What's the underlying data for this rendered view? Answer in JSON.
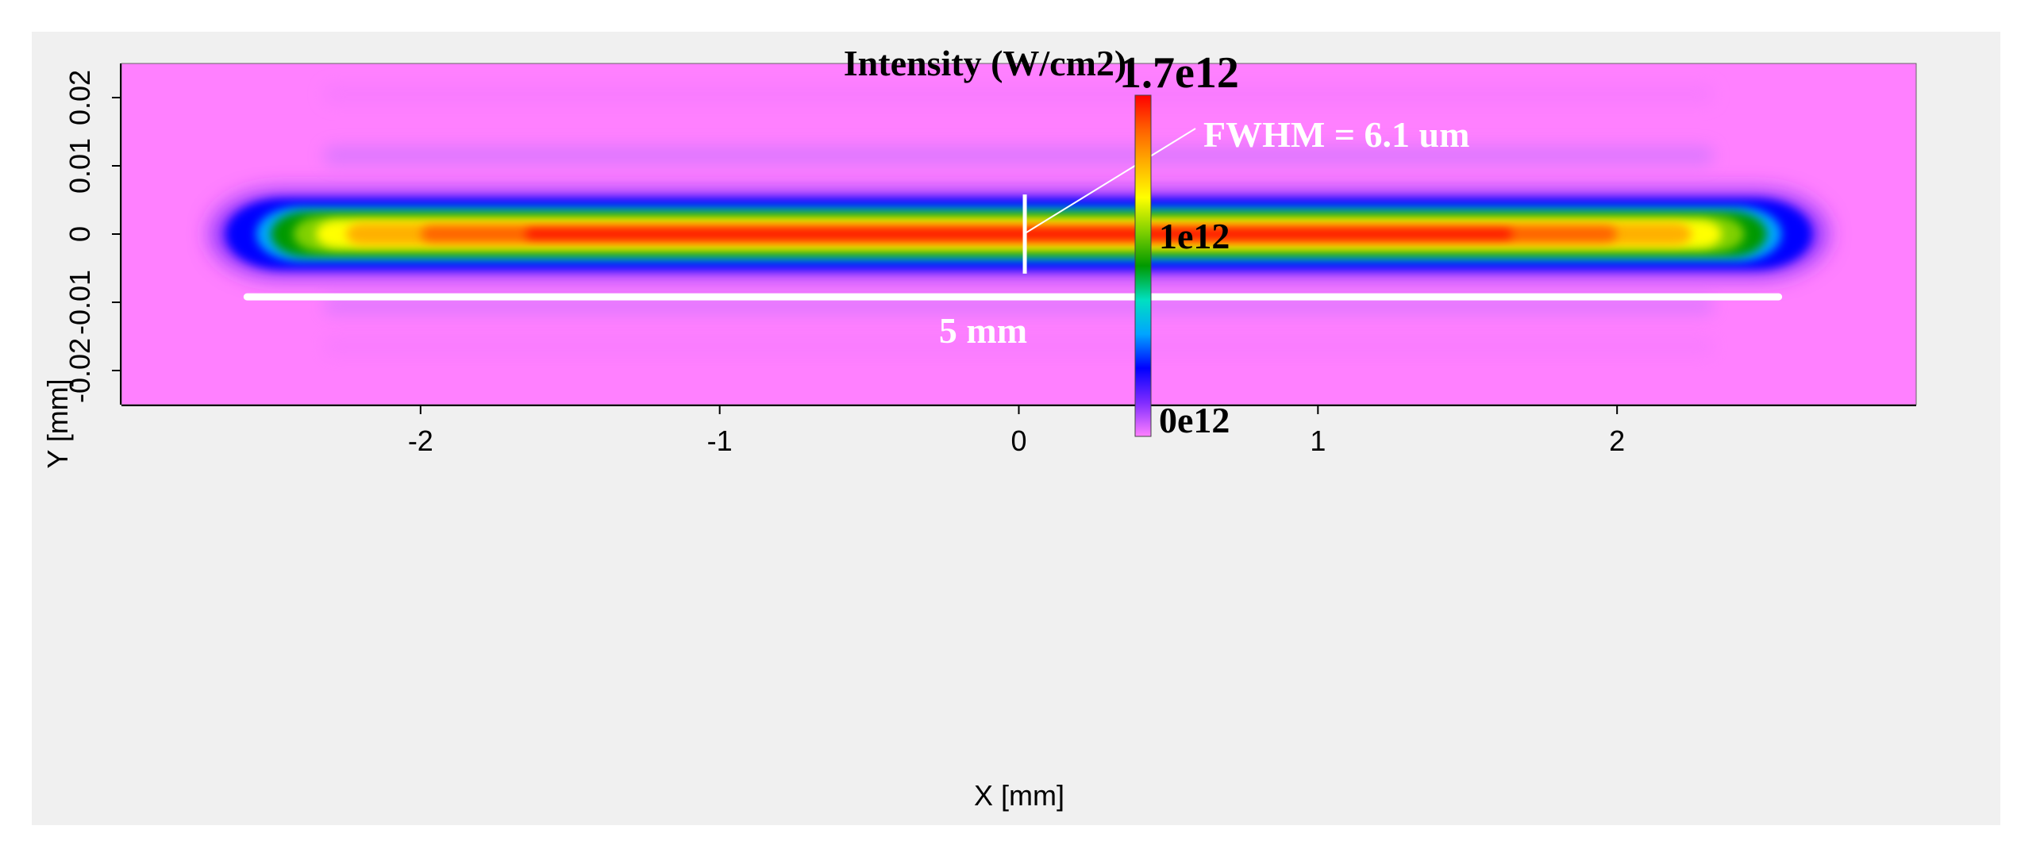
{
  "chart_data": {
    "type": "heatmap",
    "title": "Intensity (W/cm2)",
    "xlabel": "X [mm]",
    "ylabel": "Y [mm]",
    "xlim": [
      -3,
      3
    ],
    "ylim": [
      -0.025,
      0.025
    ],
    "x_ticks": [
      {
        "value": -2,
        "label": "-2"
      },
      {
        "value": -1,
        "label": "-1"
      },
      {
        "value": 0,
        "label": "0"
      },
      {
        "value": 1,
        "label": "1"
      },
      {
        "value": 2,
        "label": "2"
      }
    ],
    "y_ticks": [
      {
        "value": 0.02,
        "label": "0.02"
      },
      {
        "value": 0.01,
        "label": "0.01"
      },
      {
        "value": 0,
        "label": "0"
      },
      {
        "value": -0.01,
        "label": "-0.01"
      },
      {
        "value": -0.02,
        "label": "-0.02"
      }
    ],
    "colorbar": {
      "min_label": "0e12",
      "mid_label": "1e12",
      "max_label": "1.7e12",
      "min": 0,
      "mid": 1000000000000.0,
      "max": 1700000000000.0,
      "stops": [
        "#ff80ff",
        "#7f2bff",
        "#0000ff",
        "#00a5ff",
        "#00e0c0",
        "#009900",
        "#80d000",
        "#ffff00",
        "#ffb000",
        "#ff6000",
        "#ff0000"
      ]
    },
    "beam": {
      "center_x": 0,
      "center_y": 0,
      "length_mm": 5,
      "fwhm_um": 6.1,
      "peak_intensity": 1700000000000.0
    },
    "annotations": {
      "fwhm_label": "FWHM = 6.1 um",
      "length_label": "5 mm",
      "scale_bar_x": [
        -2.58,
        2.54
      ],
      "scale_bar_y": -0.0092,
      "fwhm_marker_x": 0.02,
      "fwhm_marker_y": [
        -0.0058,
        0.0058
      ]
    }
  }
}
